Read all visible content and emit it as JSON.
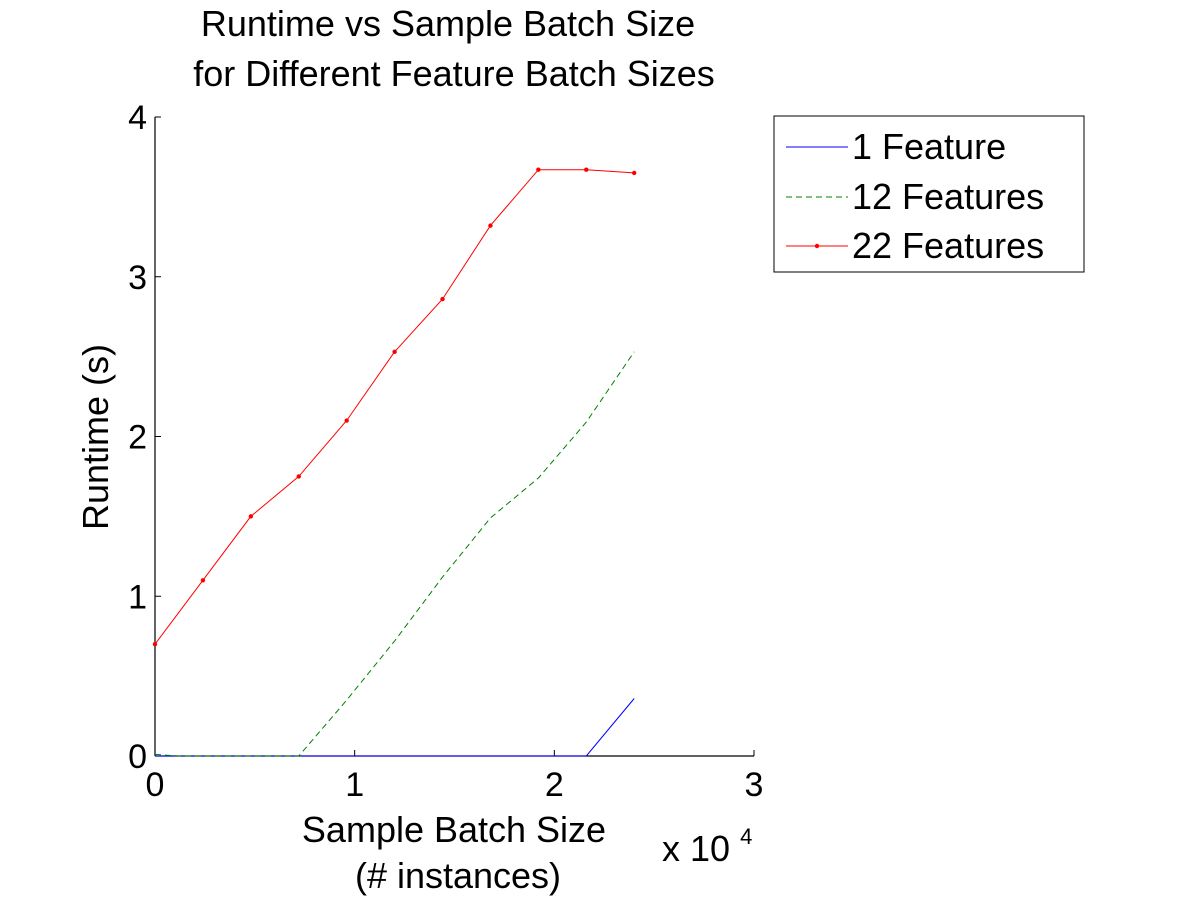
{
  "chart_data": {
    "type": "line",
    "title_lines": [
      "Runtime vs Sample Batch Size",
      "for Different Feature Batch Sizes"
    ],
    "xlabel_lines": [
      "Sample Batch Size",
      "(# instances)"
    ],
    "ylabel": "Runtime (s)",
    "x_exponent": {
      "base": "x 10",
      "power": "4"
    },
    "xlim": [
      0,
      30000
    ],
    "ylim": [
      0,
      4
    ],
    "xticks": [
      0,
      10000,
      20000,
      30000
    ],
    "xtick_labels": [
      "0",
      "1",
      "2",
      "3"
    ],
    "yticks": [
      0,
      1,
      2,
      3,
      4
    ],
    "ytick_labels": [
      "0",
      "1",
      "2",
      "3",
      "4"
    ],
    "grid": false,
    "legend_position": "outside-top-right",
    "series": [
      {
        "name": "1 Feature",
        "color": "#0000ff",
        "style": "solid",
        "marker": "none",
        "x": [
          0,
          1200,
          2400,
          4800,
          7200,
          9600,
          12000,
          14400,
          16800,
          19200,
          21600,
          24000
        ],
        "y": [
          0.0,
          0.0,
          0.0,
          0.0,
          0.0,
          0.0,
          0.0,
          0.0,
          0.0,
          0.0,
          0.0,
          0.36
        ]
      },
      {
        "name": "12 Features",
        "color": "#008000",
        "style": "dashed",
        "marker": "none",
        "x": [
          0,
          1200,
          2400,
          4800,
          7200,
          9600,
          12000,
          14400,
          16800,
          19200,
          21600,
          24000
        ],
        "y": [
          0.01,
          0.0,
          0.0,
          0.0,
          0.0,
          0.35,
          0.72,
          1.12,
          1.49,
          1.74,
          2.09,
          2.53
        ]
      },
      {
        "name": "22 Features",
        "color": "#ff0000",
        "style": "solid",
        "marker": "dot",
        "x": [
          0,
          2400,
          4800,
          7200,
          9600,
          12000,
          14400,
          16800,
          19200,
          21600,
          24000
        ],
        "y": [
          0.7,
          1.1,
          1.5,
          1.75,
          2.1,
          2.53,
          2.86,
          3.32,
          3.67,
          3.67,
          3.65
        ]
      }
    ]
  }
}
